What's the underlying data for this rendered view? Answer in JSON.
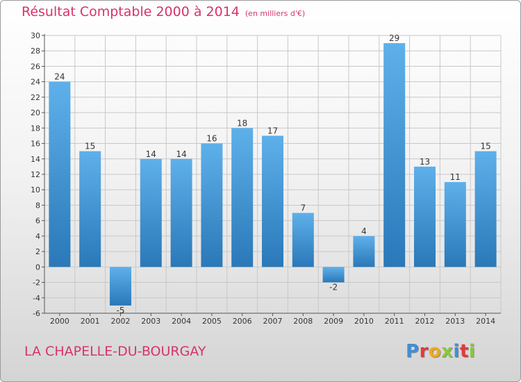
{
  "header": {
    "title": "Résultat Comptable 2000 à 2014",
    "unit": "(en milliers d'€)"
  },
  "footer": {
    "commune": "LA CHAPELLE-DU-BOURGAY"
  },
  "logo": {
    "letters": [
      "P",
      "r",
      "o",
      "x",
      "i",
      "t",
      "i"
    ],
    "colors": [
      "#3f8fd6",
      "#e23b3b",
      "#f2a81d",
      "#8cc63f",
      "#3f8fd6",
      "#e23b3b",
      "#8cc63f"
    ]
  },
  "chart_data": {
    "type": "bar",
    "categories": [
      "2000",
      "2001",
      "2002",
      "2003",
      "2004",
      "2005",
      "2006",
      "2007",
      "2008",
      "2009",
      "2010",
      "2011",
      "2012",
      "2013",
      "2014"
    ],
    "values": [
      24,
      15,
      -5,
      14,
      14,
      16,
      18,
      17,
      7,
      -2,
      4,
      29,
      13,
      11,
      15
    ],
    "ylim": [
      -6,
      30
    ],
    "yticks": [
      -6,
      -4,
      -2,
      0,
      2,
      4,
      6,
      8,
      10,
      12,
      14,
      16,
      18,
      20,
      22,
      24,
      26,
      28,
      30
    ],
    "grid": true,
    "colors": {
      "bar_light": "#5eb0ea",
      "bar_dark": "#2a78b8",
      "grid": "#c8c8c8"
    }
  }
}
